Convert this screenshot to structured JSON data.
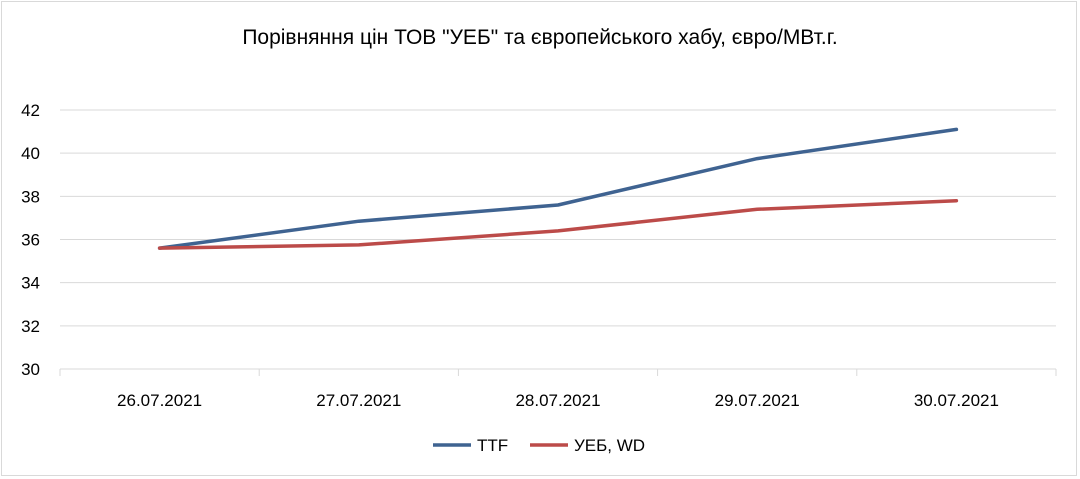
{
  "chart_data": {
    "type": "line",
    "title": "Порівняння цін ТОВ \"УЕБ\" та європейського хабу, євро/МВт.г.",
    "categories": [
      "26.07.2021",
      "27.07.2021",
      "28.07.2021",
      "29.07.2021",
      "30.07.2021"
    ],
    "ylim": [
      30,
      42
    ],
    "yticks": [
      30,
      32,
      34,
      36,
      38,
      40,
      42
    ],
    "grid": true,
    "legend_position": "bottom",
    "series": [
      {
        "name": "TTF",
        "color": "#3f6391",
        "values": [
          35.6,
          36.85,
          37.6,
          39.75,
          41.1
        ]
      },
      {
        "name": "УЕБ, WD",
        "color": "#bc4b49",
        "values": [
          35.6,
          35.75,
          36.4,
          37.4,
          37.8
        ]
      }
    ]
  }
}
